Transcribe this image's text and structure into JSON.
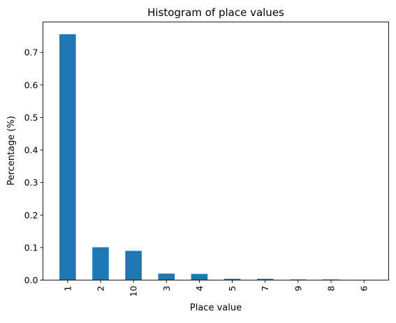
{
  "chart_data": {
    "type": "bar",
    "title": "Histogram of place values",
    "xlabel": "Place value",
    "ylabel": "Percentage (%)",
    "categories": [
      "1",
      "2",
      "10",
      "3",
      "4",
      "5",
      "7",
      "9",
      "8",
      "6"
    ],
    "values": [
      0.756,
      0.101,
      0.09,
      0.02,
      0.019,
      0.004,
      0.004,
      0.002,
      0.002,
      0.001
    ],
    "ylim": [
      0,
      0.7938
    ],
    "yticks": [
      0.0,
      0.1,
      0.2,
      0.3,
      0.4,
      0.5,
      0.6,
      0.7
    ],
    "ytick_labels": [
      "0.0",
      "0.1",
      "0.2",
      "0.3",
      "0.4",
      "0.5",
      "0.6",
      "0.7"
    ],
    "bar_color": "#1f77b4",
    "grid": false,
    "legend": "none"
  }
}
